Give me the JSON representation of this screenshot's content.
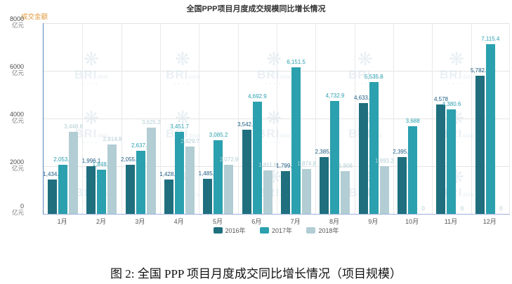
{
  "chart_data": {
    "type": "bar",
    "title": "全国PPP项目月度成交规模同比增长情况",
    "ylabel": "成交金额",
    "ylabel_color": "#e09a3e",
    "y_unit": "亿元",
    "ylim": [
      0,
      8000
    ],
    "yticks": [
      0,
      2000,
      4000,
      6000,
      8000
    ],
    "grid": "horizontal and vertical light gray",
    "legend_position": "bottom",
    "categories": [
      "1月",
      "2月",
      "3月",
      "4月",
      "5月",
      "6月",
      "7月",
      "8月",
      "9月",
      "10月",
      "11月",
      "12月"
    ],
    "series": [
      {
        "name": "2016年",
        "color": "#1f6f7e",
        "label_color": "#1b5a80",
        "values": [
          1434.7,
          1996.1,
          2055.8,
          1428.1,
          1485.1,
          3542.1,
          1799.0,
          2385.4,
          4633.6,
          2395.5,
          4578,
          5782.3
        ],
        "labels": [
          "1,434.7",
          "1,996.1",
          "2,055.8",
          "1,428.1",
          "1,485.1",
          "3,542.1",
          "1,799.0",
          "2,385.4",
          "4,633.6",
          "2,395.5",
          "4,578",
          "5,782.3"
        ]
      },
      {
        "name": "2017年",
        "color": "#2ba0ae",
        "label_color": "#2ba0ae",
        "values": [
          2053.2,
          1848.4,
          2637.6,
          3451.7,
          3085.2,
          4692.9,
          6151.5,
          4732.9,
          5535.8,
          3688,
          4380.6,
          7115.4
        ],
        "labels": [
          "2,053.2",
          "1,848.4",
          "2,637.6",
          "3,451.7",
          "3,085.2",
          "4,692.9",
          "6,151.5",
          "4,732.9",
          "5,535.8",
          "3,688",
          "4,380.6",
          "7,115.4"
        ]
      },
      {
        "name": "2018年",
        "color": "#b2cdd3",
        "label_color": "#b2cdd3",
        "values": [
          3448.6,
          2914.8,
          3625.2,
          2829.7,
          2072.9,
          1811.9,
          1874.8,
          1806,
          1993.2,
          0,
          0,
          0
        ],
        "labels": [
          "3,448.6",
          "2,914.8",
          "3,625.2",
          "2,829.7",
          "2,072.9",
          "1,811.9",
          "1,874.8",
          "1,806",
          "1,993.2",
          "0",
          "0",
          "0"
        ]
      }
    ]
  },
  "watermark": {
    "brand": "BRI",
    "sub": "data"
  },
  "caption": "图 2: 全国 PPP 项目月度成交同比增长情况（项目规模）"
}
